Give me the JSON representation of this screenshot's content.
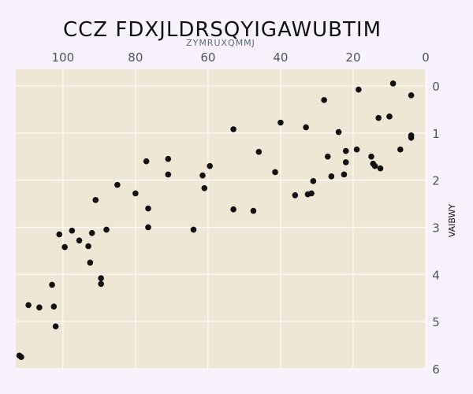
{
  "chart_data": {
    "type": "scatter",
    "title": "CCZ FDXJLDRSQYIGAWUBTIM",
    "xlabel": "ZYMRUXQMMJ",
    "ylabel": "VAIBWY",
    "x_axis_position": "top",
    "x_inverted": true,
    "y_axis_position": "right",
    "y_inverted": true,
    "xlim": [
      113,
      0
    ],
    "ylim": [
      6,
      -0.35
    ],
    "xticks": [
      100,
      80,
      60,
      40,
      20,
      0
    ],
    "yticks": [
      0,
      1,
      2,
      3,
      4,
      5,
      6
    ],
    "grid": true,
    "colors": {
      "plot_bg": "#efe7d5",
      "point": "#111111",
      "grid": "#ffffff"
    },
    "points": [
      {
        "x": 9,
        "y": -0.05
      },
      {
        "x": 4,
        "y": 0.2
      },
      {
        "x": 18.5,
        "y": 0.08
      },
      {
        "x": 28,
        "y": 0.3
      },
      {
        "x": 13,
        "y": 0.68
      },
      {
        "x": 10,
        "y": 0.65
      },
      {
        "x": 40,
        "y": 0.78
      },
      {
        "x": 33,
        "y": 0.88
      },
      {
        "x": 53,
        "y": 0.92
      },
      {
        "x": 24,
        "y": 0.98
      },
      {
        "x": 4,
        "y": 1.05
      },
      {
        "x": 4,
        "y": 1.1
      },
      {
        "x": 7,
        "y": 1.35
      },
      {
        "x": 19,
        "y": 1.35
      },
      {
        "x": 22,
        "y": 1.38
      },
      {
        "x": 15,
        "y": 1.5
      },
      {
        "x": 27,
        "y": 1.5
      },
      {
        "x": 46,
        "y": 1.4
      },
      {
        "x": 71,
        "y": 1.55
      },
      {
        "x": 77,
        "y": 1.6
      },
      {
        "x": 22,
        "y": 1.62
      },
      {
        "x": 14.5,
        "y": 1.65
      },
      {
        "x": 14,
        "y": 1.7
      },
      {
        "x": 12.5,
        "y": 1.75
      },
      {
        "x": 59.5,
        "y": 1.7
      },
      {
        "x": 41.5,
        "y": 1.83
      },
      {
        "x": 71,
        "y": 1.88
      },
      {
        "x": 61.5,
        "y": 1.9
      },
      {
        "x": 26,
        "y": 1.92
      },
      {
        "x": 22.5,
        "y": 1.88
      },
      {
        "x": 31,
        "y": 2.02
      },
      {
        "x": 85,
        "y": 2.1
      },
      {
        "x": 61,
        "y": 2.17
      },
      {
        "x": 80,
        "y": 2.28
      },
      {
        "x": 32.5,
        "y": 2.3
      },
      {
        "x": 31.5,
        "y": 2.28
      },
      {
        "x": 36,
        "y": 2.32
      },
      {
        "x": 91,
        "y": 2.42
      },
      {
        "x": 76.5,
        "y": 2.6
      },
      {
        "x": 53,
        "y": 2.62
      },
      {
        "x": 47.5,
        "y": 2.65
      },
      {
        "x": 76.5,
        "y": 3.0
      },
      {
        "x": 64,
        "y": 3.05
      },
      {
        "x": 97.5,
        "y": 3.07
      },
      {
        "x": 88,
        "y": 3.05
      },
      {
        "x": 92,
        "y": 3.12
      },
      {
        "x": 101,
        "y": 3.15
      },
      {
        "x": 95.5,
        "y": 3.28
      },
      {
        "x": 99.5,
        "y": 3.42
      },
      {
        "x": 93,
        "y": 3.4
      },
      {
        "x": 92.5,
        "y": 3.75
      },
      {
        "x": 89.5,
        "y": 4.08
      },
      {
        "x": 89.5,
        "y": 4.2
      },
      {
        "x": 103,
        "y": 4.22
      },
      {
        "x": 109.5,
        "y": 4.65
      },
      {
        "x": 106.5,
        "y": 4.7
      },
      {
        "x": 102.5,
        "y": 4.68
      },
      {
        "x": 102,
        "y": 5.1
      },
      {
        "x": 112,
        "y": 5.72
      },
      {
        "x": 111.5,
        "y": 5.75
      }
    ]
  }
}
